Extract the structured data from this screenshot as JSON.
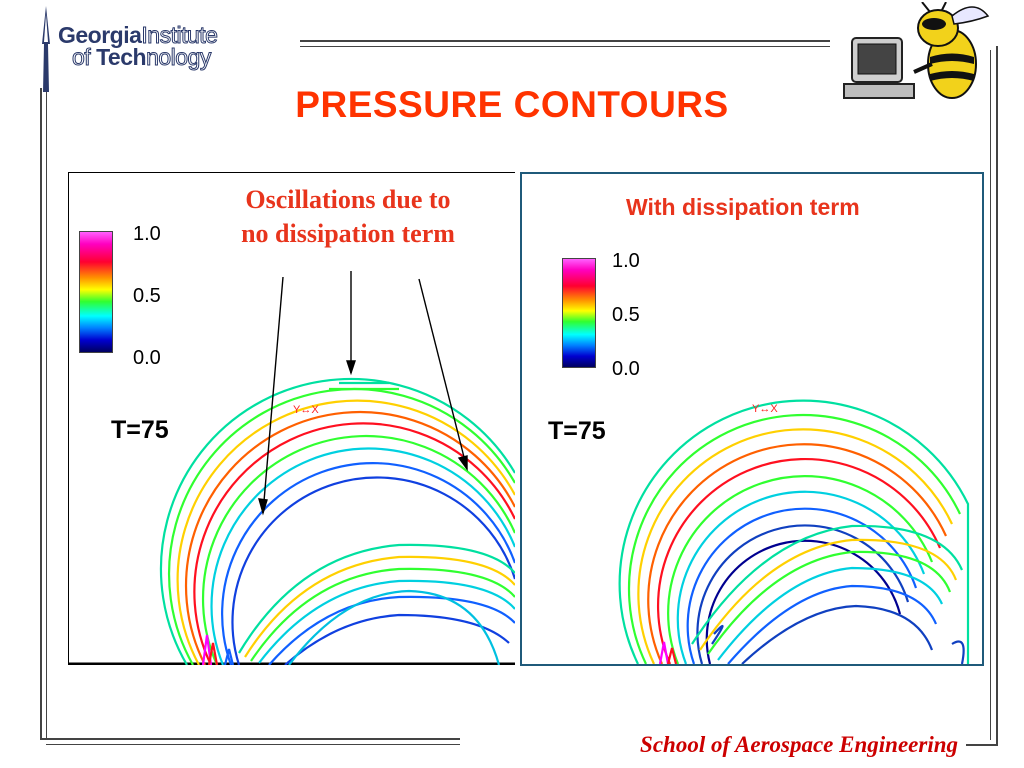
{
  "header": {
    "logo_line1_bold": "Georgia",
    "logo_line1_light": "Institute",
    "logo_line2_light_a": "of ",
    "logo_line2_bold": "Tech",
    "logo_line2_light_b": "nology",
    "mascot_icon": "buzz-computer-icon"
  },
  "slide": {
    "title": "PRESSURE CONTOURS",
    "footer": "School of Aerospace Engineering"
  },
  "left_panel": {
    "annotation_line1": "Oscillations due to",
    "annotation_line2": "no dissipation term",
    "time_label": "T=75",
    "legend": {
      "max": "1.0",
      "mid": "0.5",
      "min": "0.0"
    },
    "axis_marker": "Y↔X"
  },
  "right_panel": {
    "annotation": "With dissipation term",
    "time_label": "T=75",
    "legend": {
      "max": "1.0",
      "mid": "0.5",
      "min": "0.0"
    },
    "axis_marker": "Y↔X"
  },
  "colors": {
    "title": "#ff3300",
    "annotation": "#e8341c",
    "footer": "#cc0000",
    "right_frame": "#1f5a7a",
    "logo": "#2b3a6b"
  }
}
